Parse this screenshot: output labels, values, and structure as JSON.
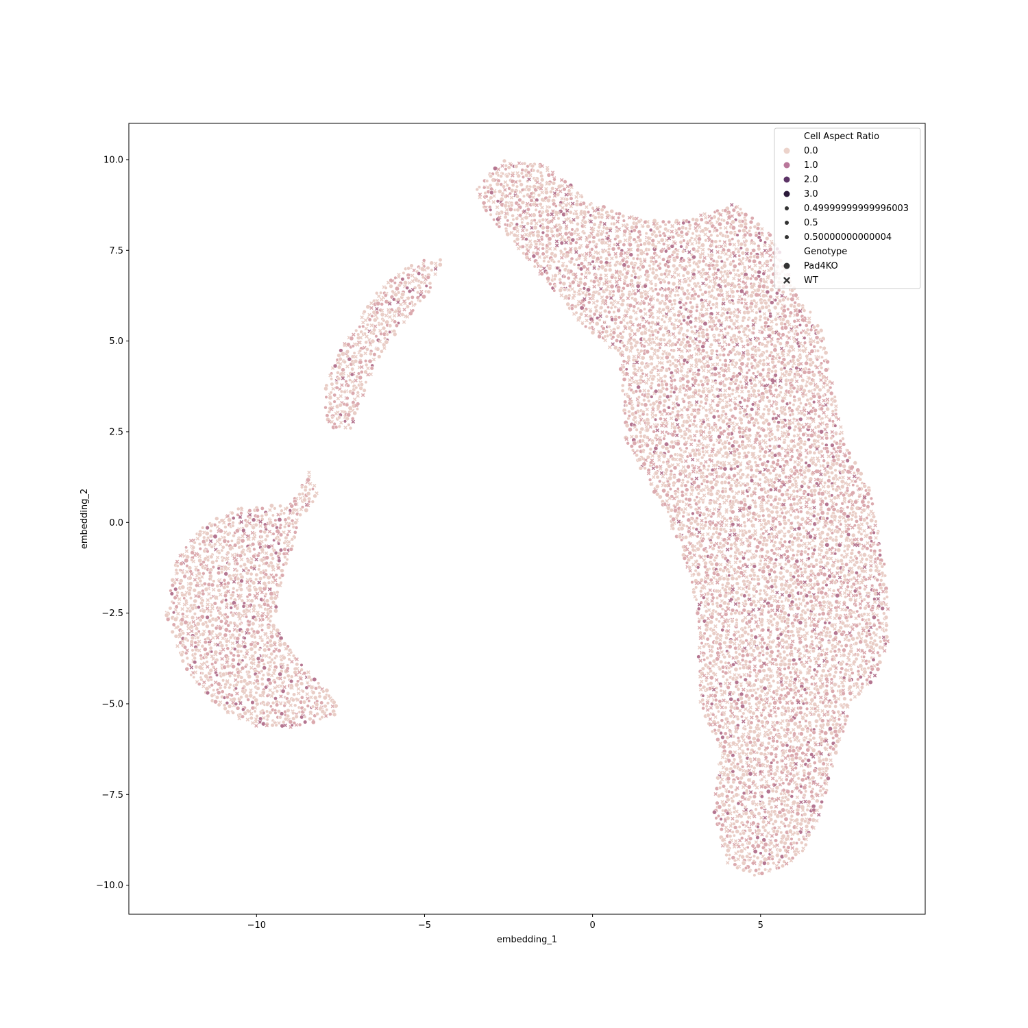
{
  "chart_data": {
    "type": "scatter",
    "xlabel": "embedding_1",
    "ylabel": "embedding_2",
    "xlim": [
      -13.8,
      9.9
    ],
    "ylim": [
      -10.8,
      11.0
    ],
    "xticks": [
      -10,
      -5,
      0,
      5
    ],
    "yticks": [
      -10.0,
      -7.5,
      -5.0,
      -2.5,
      0.0,
      2.5,
      5.0,
      7.5,
      10.0
    ],
    "xtick_labels": [
      "−10",
      "−5",
      "0",
      "5"
    ],
    "ytick_labels": [
      "−10.0",
      "−7.5",
      "−5.0",
      "−2.5",
      "0.0",
      "2.5",
      "5.0",
      "7.5",
      "10.0"
    ],
    "grid": false,
    "legend_placement": "top-right",
    "legend": {
      "hue_title": "Cell Aspect Ratio",
      "hue_entries": [
        {
          "label": "0.0",
          "color": "#ecd3cb"
        },
        {
          "label": "1.0",
          "color": "#b9779a"
        },
        {
          "label": "2.0",
          "color": "#5c3466"
        },
        {
          "label": "3.0",
          "color": "#2b1a3a"
        }
      ],
      "size_entries": [
        {
          "label": "0.49999999999996003"
        },
        {
          "label": "0.5"
        },
        {
          "label": "0.50000000000004"
        }
      ],
      "style_title": "Genotype",
      "style_entries": [
        {
          "label": "Pad4KO",
          "marker": "circle"
        },
        {
          "label": "WT",
          "marker": "x"
        }
      ]
    },
    "clusters": [
      {
        "name_hint": "upper-left arm",
        "outline": [
          [
            -7.6,
            2.5
          ],
          [
            -8.0,
            2.9
          ],
          [
            -8.0,
            3.6
          ],
          [
            -7.6,
            4.6
          ],
          [
            -7.0,
            5.6
          ],
          [
            -6.3,
            6.5
          ],
          [
            -5.3,
            7.2
          ],
          [
            -4.4,
            7.3
          ],
          [
            -4.9,
            6.3
          ],
          [
            -5.7,
            5.4
          ],
          [
            -6.5,
            4.3
          ],
          [
            -6.9,
            3.3
          ],
          [
            -7.2,
            2.6
          ]
        ]
      },
      {
        "name_hint": "lower-left crescent",
        "outline": [
          [
            -8.4,
            1.5
          ],
          [
            -9.0,
            0.5
          ],
          [
            -10.5,
            0.4
          ],
          [
            -11.5,
            0.0
          ],
          [
            -12.4,
            -1.0
          ],
          [
            -12.7,
            -2.5
          ],
          [
            -12.2,
            -3.9
          ],
          [
            -11.3,
            -5.0
          ],
          [
            -10.2,
            -5.6
          ],
          [
            -8.8,
            -5.7
          ],
          [
            -7.6,
            -5.3
          ],
          [
            -7.6,
            -4.9
          ],
          [
            -8.6,
            -4.0
          ],
          [
            -9.5,
            -2.8
          ],
          [
            -9.2,
            -1.4
          ],
          [
            -8.8,
            -0.3
          ],
          [
            -8.2,
            0.8
          ]
        ]
      },
      {
        "name_hint": "right main body",
        "outline": [
          [
            -3.5,
            9.3
          ],
          [
            -2.6,
            10.0
          ],
          [
            -1.4,
            9.9
          ],
          [
            0.0,
            8.8
          ],
          [
            1.6,
            8.3
          ],
          [
            3.0,
            8.4
          ],
          [
            4.2,
            8.8
          ],
          [
            5.3,
            8.0
          ],
          [
            5.8,
            7.0
          ],
          [
            6.1,
            6.3
          ],
          [
            6.8,
            5.4
          ],
          [
            7.2,
            3.6
          ],
          [
            7.5,
            2.2
          ],
          [
            8.3,
            0.9
          ],
          [
            8.6,
            -0.8
          ],
          [
            8.8,
            -1.6
          ],
          [
            8.8,
            -3.4
          ],
          [
            8.4,
            -4.3
          ],
          [
            7.7,
            -5.0
          ],
          [
            7.3,
            -6.3
          ],
          [
            6.8,
            -8.0
          ],
          [
            6.2,
            -9.2
          ],
          [
            5.0,
            -9.8
          ],
          [
            4.0,
            -9.4
          ],
          [
            3.6,
            -8.0
          ],
          [
            3.8,
            -6.3
          ],
          [
            3.2,
            -5.0
          ],
          [
            3.1,
            -2.5
          ],
          [
            2.9,
            -1.5
          ],
          [
            2.3,
            0.0
          ],
          [
            1.0,
            2.2
          ],
          [
            0.8,
            4.6
          ],
          [
            -0.3,
            5.4
          ],
          [
            -1.7,
            7.0
          ],
          [
            -3.3,
            8.7
          ]
        ]
      }
    ],
    "point_colors": {
      "main": "#e9cdc6",
      "mid": "#dba9ae",
      "dark": "#b47590"
    }
  }
}
